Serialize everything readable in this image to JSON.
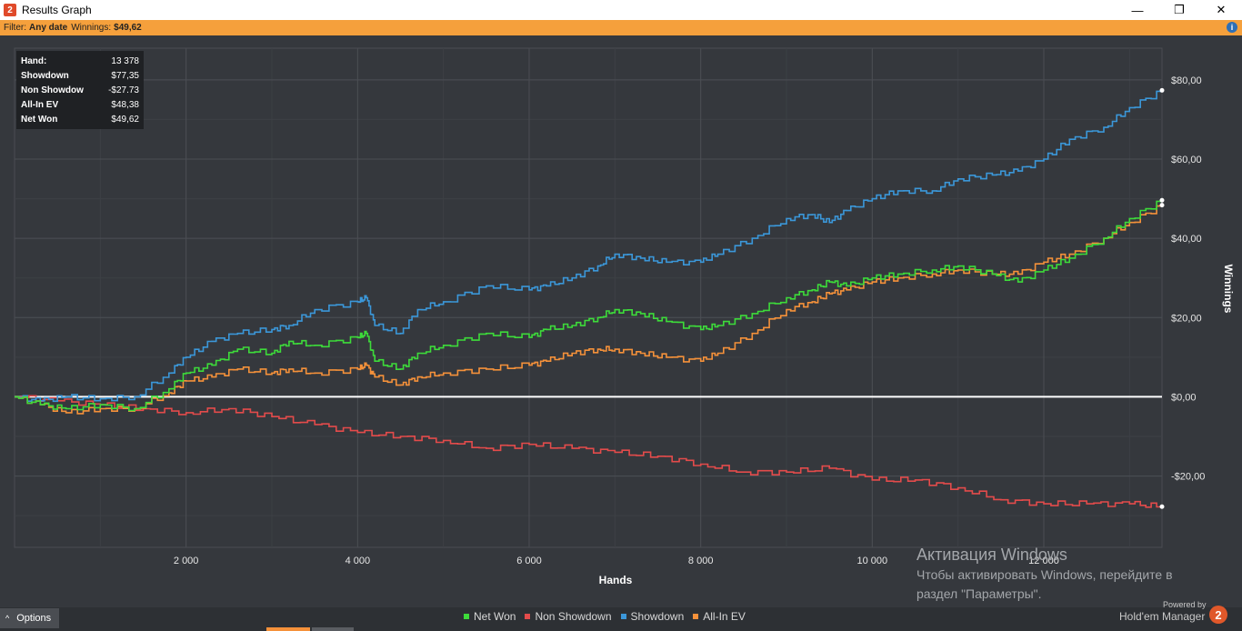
{
  "window": {
    "title": "Results Graph",
    "minimize": "—",
    "maximize": "❐",
    "close": "✕"
  },
  "filter": {
    "label": "Filter:",
    "date": "Any date",
    "winnings_label": "Winnings:",
    "winnings": "$49,62",
    "info": "i"
  },
  "stats": [
    {
      "k": "Hand:",
      "v": "13 378"
    },
    {
      "k": "Showdown",
      "v": "$77,35"
    },
    {
      "k": "Non Showdow",
      "v": "-$27.73"
    },
    {
      "k": "All-In EV",
      "v": "$48,38"
    },
    {
      "k": "Net Won",
      "v": "$49,62"
    }
  ],
  "options": {
    "label": "Options",
    "icon": "caret-up-icon"
  },
  "legend": [
    {
      "name": "Net Won",
      "color": "#3ddb3a"
    },
    {
      "name": "Non Showdown",
      "color": "#e34b4b"
    },
    {
      "name": "Showdown",
      "color": "#3b97d9"
    },
    {
      "name": "All-In EV",
      "color": "#f5913a"
    }
  ],
  "activation": {
    "heading": "Активация Windows",
    "line1": "Чтобы активировать Windows, перейдите в",
    "line2": "раздел \"Параметры\"."
  },
  "brand": {
    "powered": "Powered by",
    "name": "Hold'em Manager",
    "logo": "2"
  },
  "chart_data": {
    "type": "line",
    "xlabel": "Hands",
    "ylabel": "Winnings",
    "xlim": [
      0,
      13378
    ],
    "ylim": [
      -38,
      88
    ],
    "x_ticks": [
      2000,
      4000,
      6000,
      8000,
      10000,
      12000
    ],
    "x_tick_labels": [
      "2 000",
      "4 000",
      "6 000",
      "8 000",
      "10 000",
      "12 000"
    ],
    "y_ticks": [
      80,
      60,
      40,
      20,
      0,
      -20
    ],
    "y_tick_labels": [
      "$80,00",
      "$60,00",
      "$40,00",
      "$20,00",
      "$0,00",
      "-$20,00"
    ],
    "grid": true,
    "legend_position": "bottom",
    "series": [
      {
        "name": "Showdown",
        "color": "#3b97d9",
        "x": [
          0,
          300,
          600,
          1000,
          1400,
          1800,
          2000,
          2300,
          2600,
          3000,
          3200,
          3500,
          4000,
          4100,
          4200,
          4500,
          4700,
          5000,
          5500,
          6000,
          6200,
          6500,
          6800,
          7000,
          7300,
          7600,
          8000,
          8200,
          8600,
          9000,
          9300,
          9500,
          9700,
          10000,
          10300,
          10700,
          11000,
          11400,
          11700,
          12000,
          12300,
          12700,
          13000,
          13378
        ],
        "values": [
          0,
          -1,
          0,
          -0.5,
          0,
          6,
          10,
          14,
          16,
          17,
          18,
          22,
          24,
          25,
          18,
          16,
          22,
          24,
          28,
          27,
          28,
          30,
          33,
          36,
          35,
          34,
          34,
          36,
          40,
          45,
          46,
          44,
          47,
          50,
          52,
          52,
          55,
          56,
          57,
          60,
          65,
          68,
          73,
          77.35
        ]
      },
      {
        "name": "Net Won",
        "color": "#3ddb3a",
        "x": [
          0,
          300,
          600,
          1000,
          1400,
          1800,
          2000,
          2300,
          2600,
          3000,
          3200,
          3500,
          4000,
          4100,
          4200,
          4500,
          4700,
          5000,
          5500,
          6000,
          6200,
          6500,
          6800,
          7000,
          7300,
          7600,
          8000,
          8200,
          8600,
          9000,
          9300,
          9500,
          9700,
          10000,
          10300,
          10700,
          11000,
          11400,
          11700,
          12000,
          12300,
          12700,
          13000,
          13378
        ],
        "values": [
          0,
          -2,
          -3,
          -2,
          -3,
          2,
          6,
          8,
          12,
          11,
          14,
          13,
          15,
          16,
          9,
          7,
          11,
          13,
          16,
          15,
          17,
          18,
          20,
          22,
          21,
          19,
          17,
          18,
          21,
          25,
          27,
          29,
          28,
          30,
          31,
          32,
          33,
          31,
          29,
          32,
          35,
          40,
          45,
          49.62
        ]
      },
      {
        "name": "All-In EV",
        "color": "#f5913a",
        "x": [
          0,
          300,
          600,
          1000,
          1400,
          1800,
          2000,
          2300,
          2600,
          3000,
          3200,
          3500,
          4000,
          4100,
          4200,
          4500,
          4700,
          5000,
          5500,
          6000,
          6200,
          6500,
          6800,
          7000,
          7300,
          7600,
          8000,
          8200,
          8600,
          9000,
          9300,
          9500,
          9700,
          10000,
          10300,
          10700,
          11000,
          11400,
          11700,
          12000,
          12300,
          12700,
          13000,
          13378
        ],
        "values": [
          0,
          -2,
          -4,
          -3,
          -3,
          1,
          4,
          5,
          7,
          6,
          7,
          6,
          7,
          8,
          5,
          3,
          5,
          6,
          7,
          8,
          9,
          11,
          12,
          12,
          11,
          10,
          9,
          11,
          16,
          22,
          24,
          26,
          27,
          29,
          30,
          31,
          32,
          31,
          31,
          34,
          36,
          40,
          44,
          48.38
        ]
      },
      {
        "name": "Non Showdown",
        "color": "#e34b4b",
        "x": [
          0,
          500,
          1000,
          1500,
          2000,
          2500,
          3000,
          3500,
          4000,
          4500,
          5000,
          5500,
          6000,
          6500,
          7000,
          7500,
          8000,
          8500,
          9000,
          9500,
          10000,
          10500,
          11000,
          11500,
          12000,
          12500,
          13000,
          13378
        ],
        "values": [
          0,
          -1,
          -2,
          -3,
          -4,
          -3,
          -5,
          -7,
          -9,
          -10,
          -11,
          -13,
          -12,
          -13,
          -14,
          -15,
          -17,
          -19,
          -19,
          -18,
          -21,
          -21,
          -23,
          -26,
          -27,
          -27,
          -27,
          -27.73
        ]
      }
    ]
  }
}
